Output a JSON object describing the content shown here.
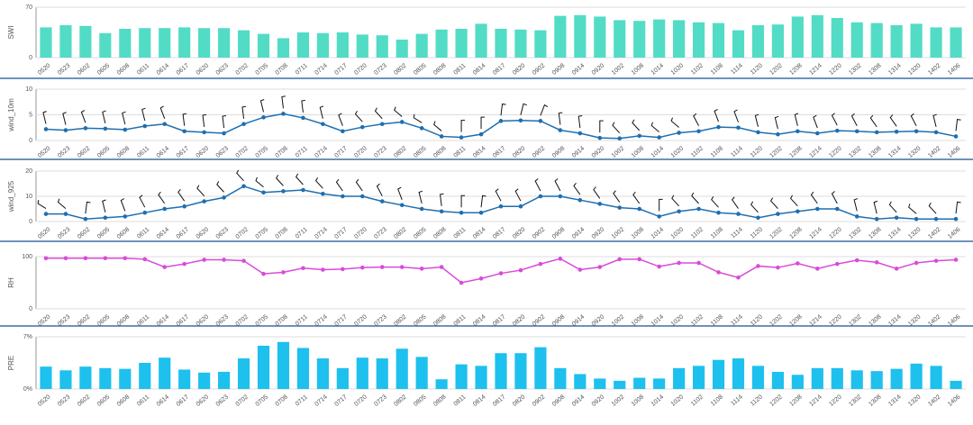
{
  "chart_data": [
    {
      "type": "bar",
      "y_label": "SWI",
      "color": "#52dcc6",
      "ylim": [
        0,
        70
      ],
      "yticks": [
        0,
        70
      ],
      "categories": [
        "0520",
        "0523",
        "0602",
        "0605",
        "0608",
        "0611",
        "0614",
        "0617",
        "0620",
        "0623",
        "0702",
        "0705",
        "0708",
        "0711",
        "0714",
        "0717",
        "0720",
        "0723",
        "0802",
        "0805",
        "0808",
        "0811",
        "0814",
        "0817",
        "0820",
        "0902",
        "0908",
        "0914",
        "0920",
        "1002",
        "1008",
        "1014",
        "1020",
        "1102",
        "1108",
        "1114",
        "1120",
        "1202",
        "1208",
        "1214",
        "1220",
        "1302",
        "1308",
        "1314",
        "1320",
        "1402",
        "1406"
      ],
      "values": [
        42,
        45,
        44,
        34,
        40,
        41,
        41,
        42,
        41,
        41,
        38,
        33,
        27,
        35,
        34,
        35,
        32,
        31,
        25,
        33,
        39,
        40,
        47,
        40,
        39,
        38,
        58,
        59,
        57,
        52,
        51,
        53,
        52,
        49,
        48,
        38,
        45,
        46,
        57,
        59,
        55,
        49,
        48,
        45,
        47,
        42,
        42
      ]
    },
    {
      "type": "line",
      "y_label": "wind_10m",
      "color": "#1f6fb0",
      "ylim": [
        0,
        10
      ],
      "yticks": [
        0,
        5,
        10
      ],
      "categories": [
        "0520",
        "0523",
        "0602",
        "0605",
        "0608",
        "0611",
        "0614",
        "0617",
        "0620",
        "0623",
        "0702",
        "0705",
        "0708",
        "0711",
        "0714",
        "0717",
        "0720",
        "0723",
        "0802",
        "0805",
        "0808",
        "0811",
        "0814",
        "0817",
        "0820",
        "0902",
        "0908",
        "0914",
        "0920",
        "1002",
        "1008",
        "1014",
        "1020",
        "1102",
        "1108",
        "1114",
        "1120",
        "1202",
        "1208",
        "1214",
        "1220",
        "1302",
        "1308",
        "1314",
        "1320",
        "1402",
        "1406"
      ],
      "values": [
        2.2,
        2.0,
        2.4,
        2.3,
        2.1,
        2.8,
        3.2,
        1.8,
        1.6,
        1.4,
        3.2,
        4.5,
        5.2,
        4.4,
        3.2,
        1.8,
        2.6,
        3.2,
        3.6,
        2.4,
        0.8,
        0.6,
        1.2,
        3.8,
        3.9,
        3.8,
        2.0,
        1.4,
        0.5,
        0.4,
        0.9,
        0.6,
        1.5,
        1.8,
        2.6,
        2.5,
        1.6,
        1.2,
        1.8,
        1.4,
        1.9,
        1.8,
        1.6,
        1.7,
        1.8,
        1.6,
        0.8
      ],
      "directions": [
        340,
        340,
        330,
        340,
        340,
        340,
        330,
        350,
        350,
        350,
        350,
        340,
        350,
        350,
        340,
        330,
        300,
        300,
        290,
        280,
        290,
        0,
        0,
        10,
        20,
        30,
        350,
        350,
        0,
        300,
        300,
        290,
        290,
        320,
        330,
        330,
        340,
        340,
        340,
        330,
        320,
        320,
        310,
        310,
        320,
        340,
        10
      ]
    },
    {
      "type": "line",
      "y_label": "wind_925",
      "color": "#1f6fb0",
      "ylim": [
        0,
        20
      ],
      "yticks": [
        0,
        10,
        20
      ],
      "categories": [
        "0520",
        "0523",
        "0602",
        "0605",
        "0608",
        "0611",
        "0614",
        "0617",
        "0620",
        "0623",
        "0702",
        "0705",
        "0708",
        "0711",
        "0714",
        "0717",
        "0720",
        "0723",
        "0802",
        "0805",
        "0808",
        "0811",
        "0814",
        "0817",
        "0820",
        "0902",
        "0908",
        "0914",
        "0920",
        "1002",
        "1008",
        "1014",
        "1020",
        "1102",
        "1108",
        "1114",
        "1120",
        "1202",
        "1208",
        "1214",
        "1220",
        "1302",
        "1308",
        "1314",
        "1320",
        "1402",
        "1406"
      ],
      "values": [
        3,
        3,
        1,
        1.5,
        2,
        3.5,
        5,
        6,
        8,
        9.5,
        14,
        11.5,
        12,
        12.5,
        11,
        10,
        10,
        8,
        6.5,
        5,
        4,
        3.5,
        3.5,
        6,
        6,
        10,
        10,
        8.5,
        7,
        5.5,
        5,
        2,
        4,
        5,
        3.5,
        3,
        1.5,
        3,
        4,
        5,
        5,
        2,
        1,
        1.5,
        1,
        1,
        1
      ],
      "directions": [
        280,
        290,
        10,
        340,
        330,
        320,
        310,
        310,
        300,
        300,
        300,
        290,
        300,
        300,
        300,
        310,
        310,
        320,
        330,
        340,
        350,
        0,
        10,
        320,
        320,
        320,
        320,
        310,
        310,
        310,
        310,
        0,
        300,
        300,
        300,
        310,
        300,
        300,
        300,
        310,
        320,
        340,
        340,
        300,
        290,
        300,
        10
      ]
    },
    {
      "type": "line",
      "y_label": "RH",
      "color": "#d94bd9",
      "ylim": [
        0,
        100
      ],
      "yticks": [
        0,
        100
      ],
      "categories": [
        "0520",
        "0523",
        "0602",
        "0605",
        "0608",
        "0611",
        "0614",
        "0617",
        "0620",
        "0623",
        "0702",
        "0705",
        "0708",
        "0711",
        "0714",
        "0717",
        "0720",
        "0723",
        "0802",
        "0805",
        "0808",
        "0811",
        "0814",
        "0817",
        "0820",
        "0902",
        "0908",
        "0914",
        "0920",
        "1002",
        "1008",
        "1014",
        "1020",
        "1102",
        "1108",
        "1114",
        "1120",
        "1202",
        "1208",
        "1214",
        "1220",
        "1302",
        "1308",
        "1314",
        "1320",
        "1402",
        "1406"
      ],
      "values": [
        97,
        97,
        97,
        97,
        97,
        95,
        80,
        86,
        94,
        94,
        92,
        67,
        70,
        78,
        75,
        76,
        79,
        80,
        80,
        77,
        80,
        50,
        58,
        68,
        74,
        86,
        96,
        75,
        80,
        95,
        95,
        81,
        88,
        88,
        70,
        60,
        82,
        79,
        87,
        77,
        86,
        93,
        89,
        77,
        88,
        92,
        94
      ]
    },
    {
      "type": "bar",
      "y_label": "PRE",
      "color": "#1ec0ee",
      "ylim": [
        0,
        7
      ],
      "yticks": [
        {
          "value": 0,
          "label": "0%"
        },
        {
          "value": 7,
          "label": "7%"
        }
      ],
      "categories": [
        "0520",
        "0523",
        "0602",
        "0605",
        "0608",
        "0611",
        "0614",
        "0617",
        "0620",
        "0623",
        "0702",
        "0705",
        "0708",
        "0711",
        "0714",
        "0717",
        "0720",
        "0723",
        "0802",
        "0805",
        "0808",
        "0811",
        "0814",
        "0817",
        "0820",
        "0902",
        "0908",
        "0914",
        "0920",
        "1002",
        "1008",
        "1014",
        "1020",
        "1102",
        "1108",
        "1114",
        "1120",
        "1202",
        "1208",
        "1214",
        "1220",
        "1302",
        "1308",
        "1314",
        "1320",
        "1402",
        "1406"
      ],
      "values": [
        3,
        2.5,
        3,
        2.8,
        2.7,
        3.5,
        4.2,
        2.6,
        2.2,
        2.3,
        4.1,
        5.8,
        6.3,
        5.5,
        4.1,
        2.8,
        4.2,
        4.1,
        5.4,
        4.3,
        1.3,
        3.3,
        3.1,
        4.8,
        4.8,
        5.6,
        2.8,
        2,
        1.4,
        1.1,
        1.5,
        1.4,
        2.8,
        3.1,
        3.9,
        4.1,
        3.1,
        2.3,
        1.9,
        2.8,
        2.8,
        2.5,
        2.4,
        2.7,
        3.4,
        3.1,
        1.1
      ]
    }
  ]
}
